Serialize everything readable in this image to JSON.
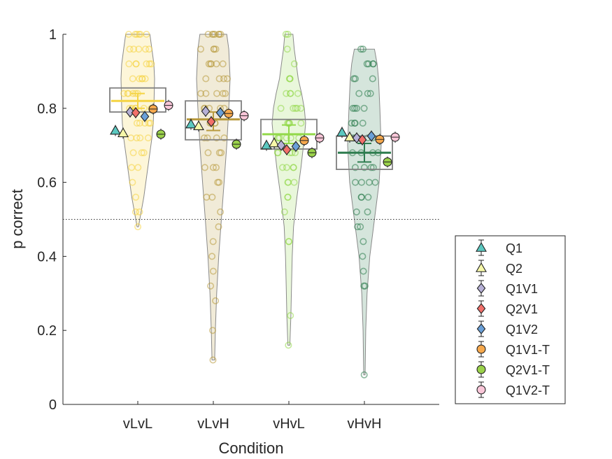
{
  "chart_data": {
    "type": "violin",
    "xlabel": "Condition",
    "ylabel": "p correct",
    "ylim": [
      0,
      1
    ],
    "yticks": [
      0,
      0.2,
      0.4,
      0.6,
      0.8,
      1
    ],
    "ytick_labels": [
      "0",
      "0.2",
      "0.4",
      "0.6",
      "0.8",
      "1"
    ],
    "categories": [
      "vLvL",
      "vLvH",
      "vHvL",
      "vHvH"
    ],
    "chance_level": 0.5,
    "condition_colors": [
      "#f5d442",
      "#b89a3e",
      "#93d94b",
      "#2e7d4f"
    ],
    "conditions": [
      {
        "name": "vLvL",
        "mean": 0.82,
        "median": 0.82,
        "error": 0.02,
        "box": [
          0.79,
          0.855
        ],
        "range": [
          0.48,
          1.0
        ],
        "violin_profile": [
          [
            0.48,
            0.02
          ],
          [
            0.52,
            0.1
          ],
          [
            0.56,
            0.18
          ],
          [
            0.6,
            0.24
          ],
          [
            0.64,
            0.3
          ],
          [
            0.68,
            0.36
          ],
          [
            0.72,
            0.42
          ],
          [
            0.76,
            0.46
          ],
          [
            0.8,
            0.48
          ],
          [
            0.84,
            0.49
          ],
          [
            0.88,
            0.5
          ],
          [
            0.92,
            0.48
          ],
          [
            0.96,
            0.42
          ],
          [
            1.0,
            0.36
          ]
        ],
        "points": [
          1,
          1,
          1,
          1,
          1,
          1,
          0.96,
          0.96,
          0.96,
          0.96,
          0.96,
          0.92,
          0.92,
          0.92,
          0.92,
          0.92,
          0.92,
          0.88,
          0.88,
          0.88,
          0.88,
          0.88,
          0.84,
          0.84,
          0.84,
          0.84,
          0.84,
          0.84,
          0.8,
          0.8,
          0.8,
          0.8,
          0.8,
          0.8,
          0.76,
          0.76,
          0.76,
          0.76,
          0.76,
          0.72,
          0.72,
          0.72,
          0.72,
          0.68,
          0.68,
          0.68,
          0.64,
          0.64,
          0.6,
          0.56,
          0.52,
          0.52,
          0.48
        ]
      },
      {
        "name": "vLvH",
        "mean": 0.765,
        "median": 0.77,
        "error": 0.025,
        "box": [
          0.715,
          0.82
        ],
        "range": [
          0.12,
          1.0
        ],
        "violin_profile": [
          [
            0.12,
            0.04
          ],
          [
            0.2,
            0.06
          ],
          [
            0.3,
            0.1
          ],
          [
            0.4,
            0.16
          ],
          [
            0.5,
            0.24
          ],
          [
            0.6,
            0.32
          ],
          [
            0.7,
            0.4
          ],
          [
            0.8,
            0.46
          ],
          [
            0.88,
            0.5
          ],
          [
            0.96,
            0.46
          ],
          [
            1.0,
            0.4
          ]
        ],
        "points": [
          1,
          1,
          1,
          1,
          1,
          1,
          1,
          0.96,
          0.96,
          0.96,
          0.96,
          0.92,
          0.92,
          0.92,
          0.92,
          0.92,
          0.88,
          0.88,
          0.88,
          0.88,
          0.84,
          0.84,
          0.84,
          0.84,
          0.84,
          0.8,
          0.8,
          0.8,
          0.8,
          0.8,
          0.76,
          0.76,
          0.76,
          0.76,
          0.72,
          0.72,
          0.72,
          0.72,
          0.68,
          0.68,
          0.68,
          0.64,
          0.64,
          0.64,
          0.6,
          0.6,
          0.56,
          0.56,
          0.52,
          0.48,
          0.44,
          0.4,
          0.36,
          0.32,
          0.28,
          0.2,
          0.12
        ]
      },
      {
        "name": "vHvL",
        "mean": 0.73,
        "median": 0.73,
        "error": 0.025,
        "box": [
          0.69,
          0.77
        ],
        "range": [
          0.16,
          1.0
        ],
        "violin_profile": [
          [
            0.16,
            0.03
          ],
          [
            0.24,
            0.06
          ],
          [
            0.32,
            0.08
          ],
          [
            0.4,
            0.1
          ],
          [
            0.48,
            0.14
          ],
          [
            0.56,
            0.24
          ],
          [
            0.64,
            0.36
          ],
          [
            0.72,
            0.46
          ],
          [
            0.76,
            0.5
          ],
          [
            0.8,
            0.46
          ],
          [
            0.84,
            0.38
          ],
          [
            0.88,
            0.28
          ],
          [
            0.92,
            0.22
          ],
          [
            0.96,
            0.16
          ],
          [
            1.0,
            0.12
          ]
        ],
        "points": [
          1,
          1,
          0.96,
          0.92,
          0.88,
          0.88,
          0.88,
          0.84,
          0.84,
          0.84,
          0.84,
          0.8,
          0.8,
          0.8,
          0.8,
          0.8,
          0.76,
          0.76,
          0.76,
          0.76,
          0.76,
          0.72,
          0.72,
          0.72,
          0.72,
          0.72,
          0.72,
          0.68,
          0.68,
          0.68,
          0.68,
          0.68,
          0.64,
          0.64,
          0.64,
          0.64,
          0.6,
          0.6,
          0.6,
          0.56,
          0.56,
          0.52,
          0.44,
          0.44,
          0.24,
          0.16
        ]
      },
      {
        "name": "vHvH",
        "mean": 0.68,
        "median": 0.68,
        "error": 0.025,
        "box": [
          0.635,
          0.725
        ],
        "range": [
          0.08,
          0.96
        ],
        "violin_profile": [
          [
            0.08,
            0.02
          ],
          [
            0.2,
            0.04
          ],
          [
            0.3,
            0.08
          ],
          [
            0.4,
            0.16
          ],
          [
            0.5,
            0.3
          ],
          [
            0.6,
            0.44
          ],
          [
            0.7,
            0.5
          ],
          [
            0.8,
            0.46
          ],
          [
            0.88,
            0.42
          ],
          [
            0.92,
            0.38
          ],
          [
            0.96,
            0.3
          ]
        ],
        "points": [
          0.96,
          0.96,
          0.92,
          0.92,
          0.92,
          0.92,
          0.88,
          0.88,
          0.88,
          0.84,
          0.84,
          0.84,
          0.8,
          0.8,
          0.8,
          0.8,
          0.76,
          0.76,
          0.76,
          0.76,
          0.72,
          0.72,
          0.72,
          0.72,
          0.72,
          0.68,
          0.68,
          0.68,
          0.68,
          0.64,
          0.64,
          0.64,
          0.64,
          0.6,
          0.6,
          0.6,
          0.6,
          0.56,
          0.56,
          0.56,
          0.52,
          0.52,
          0.48,
          0.48,
          0.44,
          0.4,
          0.36,
          0.32,
          0.32,
          0.08
        ]
      }
    ],
    "series": [
      {
        "name": "Q1",
        "marker": "triangle-up",
        "color": "#5bc8c0",
        "values": [
          0.74,
          0.757,
          0.7,
          0.735
        ]
      },
      {
        "name": "Q2",
        "marker": "triangle-up",
        "color": "#f6f7a8",
        "values": [
          0.733,
          0.752,
          0.706,
          0.722
        ]
      },
      {
        "name": "Q1V1",
        "marker": "diamond",
        "color": "#b6b0d6",
        "values": [
          0.79,
          0.792,
          0.7,
          0.72
        ]
      },
      {
        "name": "Q2V1",
        "marker": "diamond",
        "color": "#f2706a",
        "values": [
          0.788,
          0.764,
          0.688,
          0.715
        ]
      },
      {
        "name": "Q1V2",
        "marker": "diamond",
        "color": "#6aa0d8",
        "values": [
          0.778,
          0.788,
          0.697,
          0.725
        ]
      },
      {
        "name": "Q1V1-T",
        "marker": "circle",
        "color": "#f7a94d",
        "values": [
          0.798,
          0.786,
          0.713,
          0.716
        ]
      },
      {
        "name": "Q2V1-T",
        "marker": "circle",
        "color": "#9bd24b",
        "values": [
          0.73,
          0.703,
          0.68,
          0.655
        ]
      },
      {
        "name": "Q1V2-T",
        "marker": "circle",
        "color": "#f9c6d8",
        "values": [
          0.808,
          0.78,
          0.72,
          0.722
        ]
      }
    ],
    "series_error": 0.015,
    "legend_location": "right-bottom-outside"
  }
}
